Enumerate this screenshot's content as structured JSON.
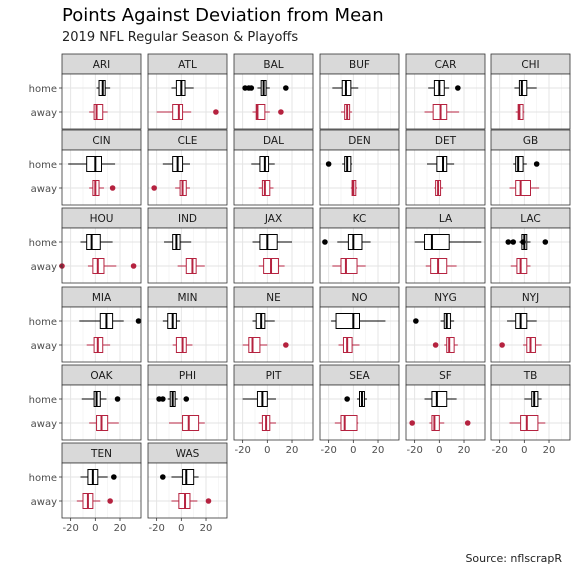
{
  "chart_data": {
    "type": "boxplot",
    "title": "Points Against Deviation from Mean",
    "subtitle": "2019 NFL Regular Season & Playoffs",
    "caption": "Source: nflscrapR",
    "categories": [
      "home",
      "away"
    ],
    "x_ticks": [
      -20,
      0,
      20
    ],
    "xlim": [
      -27,
      37
    ],
    "grid": true,
    "colors": {
      "home": "#000000",
      "away": "#b5223f"
    },
    "panels": [
      {
        "team": "ARI",
        "home": {
          "min": 1,
          "q1": 3,
          "med": 6,
          "q3": 8,
          "max": 12,
          "out": []
        },
        "away": {
          "min": -5,
          "q1": -1,
          "med": 1,
          "q3": 6,
          "max": 10,
          "out": []
        }
      },
      {
        "team": "ATL",
        "home": {
          "min": -8,
          "q1": -4,
          "med": 0,
          "q3": 3,
          "max": 10,
          "out": []
        },
        "away": {
          "min": -20,
          "q1": -7,
          "med": -2,
          "q3": 1,
          "max": 8,
          "out": [
            28
          ]
        }
      },
      {
        "team": "BAL",
        "home": {
          "min": -8,
          "q1": -5,
          "med": -3,
          "q3": -1,
          "max": 2,
          "out": [
            -18,
            -15,
            -13,
            15
          ]
        },
        "away": {
          "min": -12,
          "q1": -9,
          "med": -8,
          "q3": -2,
          "max": 2,
          "out": [
            11
          ]
        }
      },
      {
        "team": "BUF",
        "home": {
          "min": -17,
          "q1": -9,
          "med": -6,
          "q3": -2,
          "max": 4,
          "out": []
        },
        "away": {
          "min": -10,
          "q1": -7,
          "med": -5,
          "q3": -3,
          "max": -1,
          "out": []
        }
      },
      {
        "team": "CAR",
        "home": {
          "min": -9,
          "q1": -4,
          "med": 0,
          "q3": 4,
          "max": 8,
          "out": [
            15
          ]
        },
        "away": {
          "min": -12,
          "q1": -5,
          "med": 1,
          "q3": 6,
          "max": 16,
          "out": []
        }
      },
      {
        "team": "CHI",
        "home": {
          "min": -8,
          "q1": -4,
          "med": -2,
          "q3": 2,
          "max": 10,
          "out": []
        },
        "away": {
          "min": -7,
          "q1": -5,
          "med": -4,
          "q3": -1,
          "max": 0,
          "out": []
        }
      },
      {
        "team": "CIN",
        "home": {
          "min": -22,
          "q1": -7,
          "med": 0,
          "q3": 5,
          "max": 16,
          "out": []
        },
        "away": {
          "min": -5,
          "q1": -2,
          "med": 0,
          "q3": 3,
          "max": 7,
          "out": [
            14
          ]
        }
      },
      {
        "team": "CLE",
        "home": {
          "min": -15,
          "q1": -7,
          "med": -3,
          "q3": 1,
          "max": 7,
          "out": []
        },
        "away": {
          "min": -5,
          "q1": -1,
          "med": 1,
          "q3": 4,
          "max": 7,
          "out": [
            -22
          ]
        }
      },
      {
        "team": "DAL",
        "home": {
          "min": -13,
          "q1": -6,
          "med": -2,
          "q3": 1,
          "max": 6,
          "out": []
        },
        "away": {
          "min": -7,
          "q1": -4,
          "med": -2,
          "q3": 2,
          "max": 5,
          "out": []
        }
      },
      {
        "team": "DEN",
        "home": {
          "min": -9,
          "q1": -7,
          "med": -5,
          "q3": -2,
          "max": -1,
          "out": [
            -20
          ]
        },
        "away": {
          "min": -2,
          "q1": -1,
          "med": 0,
          "q3": 2,
          "max": 3,
          "out": []
        }
      },
      {
        "team": "DET",
        "home": {
          "min": -10,
          "q1": -2,
          "med": 3,
          "q3": 6,
          "max": 12,
          "out": []
        },
        "away": {
          "min": -4,
          "q1": -3,
          "med": -1,
          "q3": 1,
          "max": 3,
          "out": []
        }
      },
      {
        "team": "GB",
        "home": {
          "min": -9,
          "q1": -7,
          "med": -5,
          "q3": -1,
          "max": 2,
          "out": [
            10
          ]
        },
        "away": {
          "min": -12,
          "q1": -7,
          "med": -3,
          "q3": 5,
          "max": 12,
          "out": []
        }
      },
      {
        "team": "HOU",
        "home": {
          "min": -12,
          "q1": -7,
          "med": -3,
          "q3": 4,
          "max": 14,
          "out": []
        },
        "away": {
          "min": -6,
          "q1": -2,
          "med": 2,
          "q3": 7,
          "max": 17,
          "out": [
            -27,
            31
          ]
        }
      },
      {
        "team": "IND",
        "home": {
          "min": -14,
          "q1": -7,
          "med": -4,
          "q3": -1,
          "max": 8,
          "out": []
        },
        "away": {
          "min": -3,
          "q1": 4,
          "med": 9,
          "q3": 12,
          "max": 19,
          "out": []
        }
      },
      {
        "team": "JAX",
        "home": {
          "min": -12,
          "q1": -6,
          "med": 0,
          "q3": 8,
          "max": 20,
          "out": []
        },
        "away": {
          "min": -7,
          "q1": -3,
          "med": 3,
          "q3": 9,
          "max": 14,
          "out": []
        }
      },
      {
        "team": "KC",
        "home": {
          "min": -13,
          "q1": -4,
          "med": 0,
          "q3": 7,
          "max": 14,
          "out": [
            -23
          ]
        },
        "away": {
          "min": -17,
          "q1": -10,
          "med": -6,
          "q3": 3,
          "max": 10,
          "out": []
        }
      },
      {
        "team": "LA",
        "home": {
          "min": -20,
          "q1": -12,
          "med": -6,
          "q3": 8,
          "max": 34,
          "out": []
        },
        "away": {
          "min": -11,
          "q1": -7,
          "med": -1,
          "q3": 6,
          "max": 14,
          "out": []
        }
      },
      {
        "team": "LAC",
        "home": {
          "min": -4,
          "q1": -2,
          "med": 0,
          "q3": 2,
          "max": 5,
          "out": [
            -13,
            -9,
            -1,
            17
          ]
        },
        "away": {
          "min": -11,
          "q1": -6,
          "med": -3,
          "q3": 2,
          "max": 5,
          "out": []
        }
      },
      {
        "team": "MIA",
        "home": {
          "min": -13,
          "q1": 4,
          "med": 9,
          "q3": 14,
          "max": 23,
          "out": [
            35
          ]
        },
        "away": {
          "min": -7,
          "q1": -1,
          "med": 2,
          "q3": 6,
          "max": 12,
          "out": []
        }
      },
      {
        "team": "MIN",
        "home": {
          "min": -15,
          "q1": -11,
          "med": -7,
          "q3": -4,
          "max": -1,
          "out": []
        },
        "away": {
          "min": -7,
          "q1": -4,
          "med": 1,
          "q3": 4,
          "max": 9,
          "out": []
        }
      },
      {
        "team": "NE",
        "home": {
          "min": -12,
          "q1": -9,
          "med": -5,
          "q3": -2,
          "max": 6,
          "out": []
        },
        "away": {
          "min": -20,
          "q1": -15,
          "med": -12,
          "q3": -6,
          "max": 0,
          "out": [
            15
          ]
        }
      },
      {
        "team": "NO",
        "home": {
          "min": -18,
          "q1": -14,
          "med": 0,
          "q3": 5,
          "max": 26,
          "out": []
        },
        "away": {
          "min": -12,
          "q1": -8,
          "med": -5,
          "q3": -1,
          "max": 5,
          "out": []
        }
      },
      {
        "team": "NYG",
        "home": {
          "min": 1,
          "q1": 4,
          "med": 6,
          "q3": 9,
          "max": 12,
          "out": [
            -19
          ]
        },
        "away": {
          "min": 4,
          "q1": 6,
          "med": 8,
          "q3": 12,
          "max": 15,
          "out": [
            -3
          ]
        }
      },
      {
        "team": "NYJ",
        "home": {
          "min": -14,
          "q1": -7,
          "med": -3,
          "q3": 2,
          "max": 10,
          "out": []
        },
        "away": {
          "min": -1,
          "q1": 2,
          "med": 5,
          "q3": 9,
          "max": 14,
          "out": [
            -18
          ]
        }
      },
      {
        "team": "OAK",
        "home": {
          "min": -11,
          "q1": -1,
          "med": 1,
          "q3": 4,
          "max": 9,
          "out": [
            18
          ]
        },
        "away": {
          "min": -5,
          "q1": 1,
          "med": 5,
          "q3": 10,
          "max": 19,
          "out": []
        }
      },
      {
        "team": "PHI",
        "home": {
          "min": -11,
          "q1": -9,
          "med": -7,
          "q3": -5,
          "max": -3,
          "out": [
            -18,
            -15,
            4
          ]
        },
        "away": {
          "min": -10,
          "q1": 1,
          "med": 6,
          "q3": 14,
          "max": 19,
          "out": []
        }
      },
      {
        "team": "PIT",
        "home": {
          "min": -20,
          "q1": -8,
          "med": -4,
          "q3": 0,
          "max": 7,
          "out": []
        },
        "away": {
          "min": -7,
          "q1": -4,
          "med": -1,
          "q3": 2,
          "max": 7,
          "out": []
        }
      },
      {
        "team": "SEA",
        "home": {
          "min": 3,
          "q1": 5,
          "med": 7,
          "q3": 9,
          "max": 11,
          "out": [
            -5
          ]
        },
        "away": {
          "min": -15,
          "q1": -10,
          "med": -7,
          "q3": 3,
          "max": 4,
          "out": []
        }
      },
      {
        "team": "SF",
        "home": {
          "min": -12,
          "q1": -6,
          "med": -2,
          "q3": 6,
          "max": 14,
          "out": []
        },
        "away": {
          "min": -8,
          "q1": -6,
          "med": -4,
          "q3": 0,
          "max": 4,
          "out": [
            -22,
            23
          ]
        }
      },
      {
        "team": "TB",
        "home": {
          "min": 0,
          "q1": 6,
          "med": 8,
          "q3": 11,
          "max": 14,
          "out": []
        },
        "away": {
          "min": -12,
          "q1": -3,
          "med": 2,
          "q3": 11,
          "max": 17,
          "out": []
        }
      },
      {
        "team": "TEN",
        "home": {
          "min": -12,
          "q1": -6,
          "med": -2,
          "q3": 2,
          "max": 10,
          "out": [
            15
          ]
        },
        "away": {
          "min": -15,
          "q1": -10,
          "med": -6,
          "q3": -2,
          "max": 4,
          "out": [
            12
          ]
        }
      },
      {
        "team": "WAS",
        "home": {
          "min": -8,
          "q1": 1,
          "med": 4,
          "q3": 10,
          "max": 14,
          "out": [
            -15
          ]
        },
        "away": {
          "min": -8,
          "q1": -2,
          "med": 3,
          "q3": 7,
          "max": 13,
          "out": [
            22
          ]
        }
      }
    ]
  }
}
